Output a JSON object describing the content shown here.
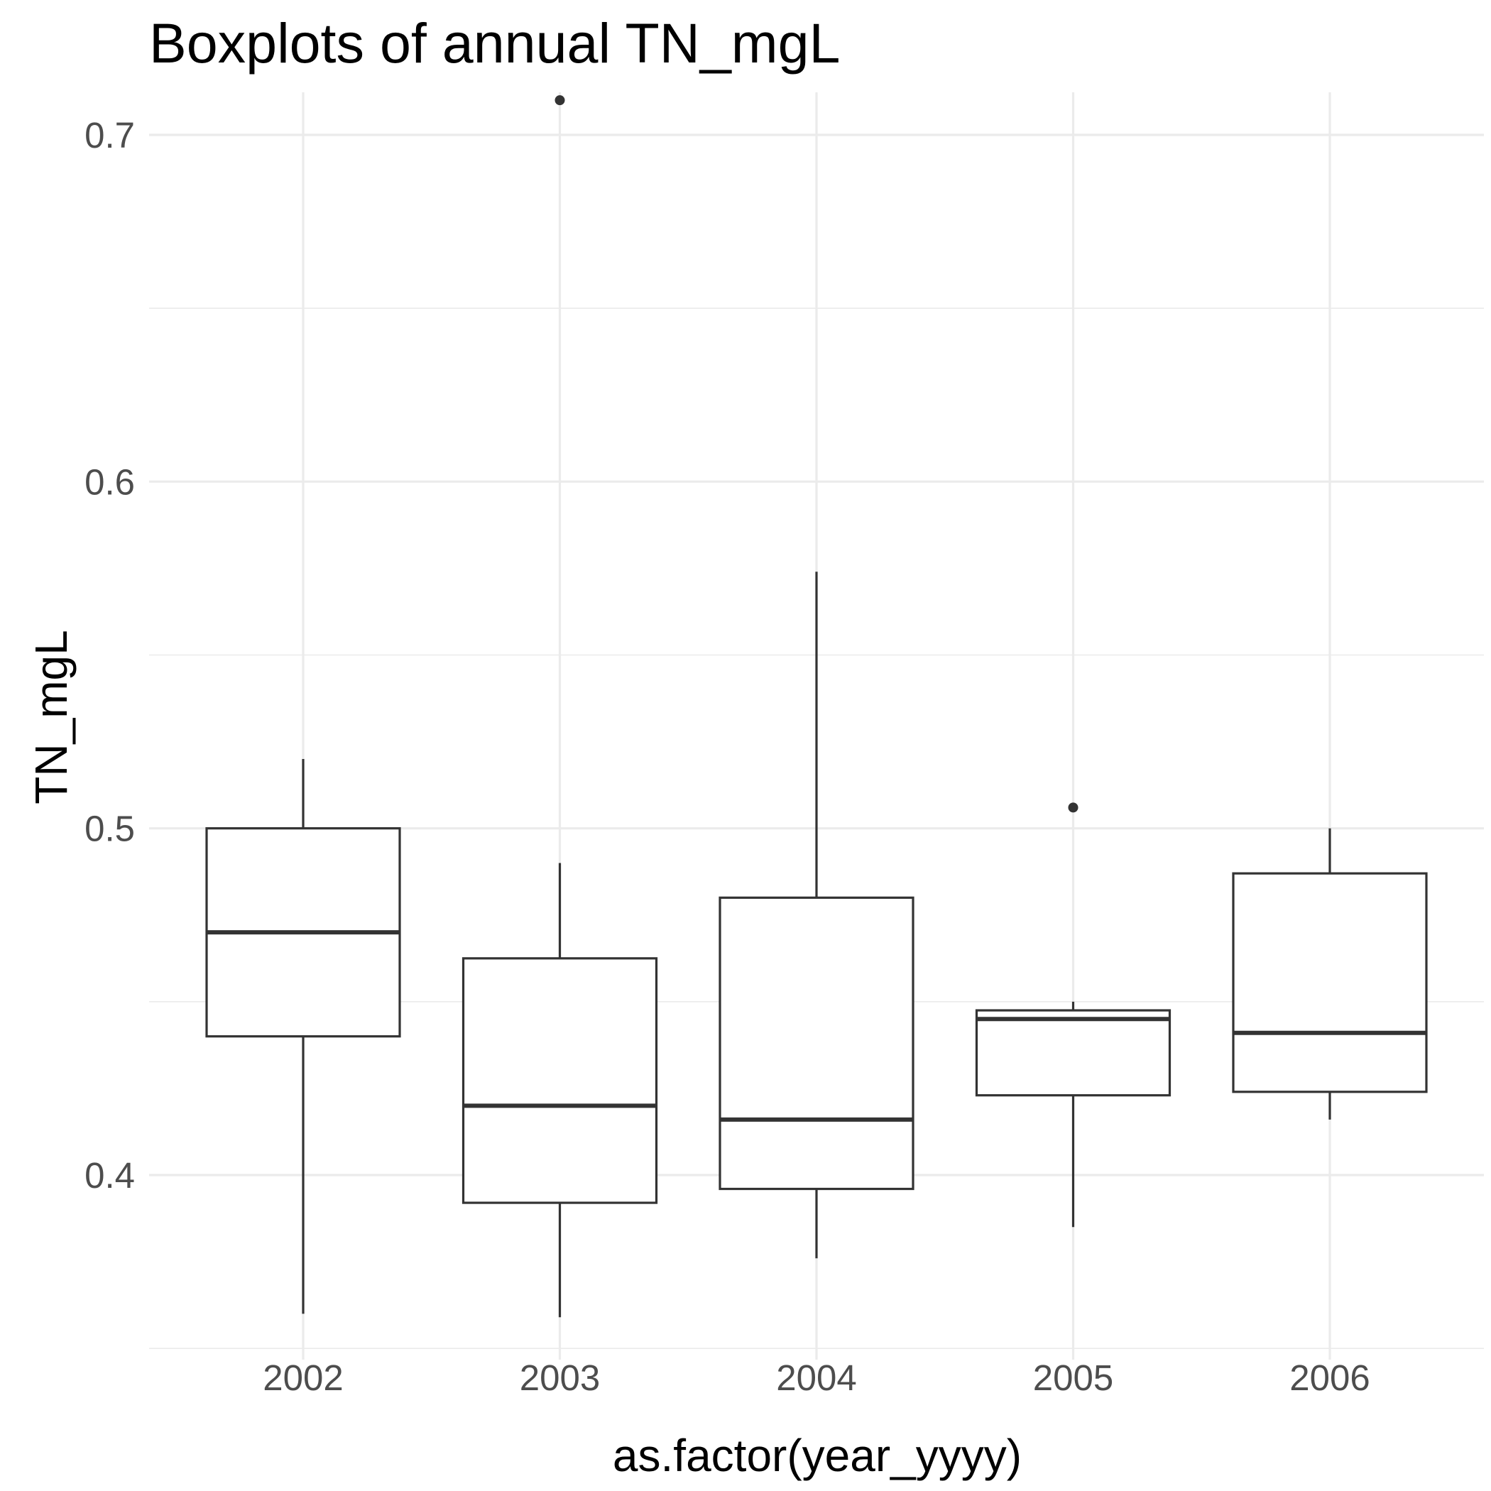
{
  "chart_data": {
    "type": "boxplot",
    "title": "Boxplots of annual TN_mgL",
    "xlabel": "as.factor(year_yyyy)",
    "ylabel": "TN_mgL",
    "categories": [
      "2002",
      "2003",
      "2004",
      "2005",
      "2006"
    ],
    "y_ticks": [
      0.4,
      0.5,
      0.6,
      0.7
    ],
    "y_tick_labels": [
      "0.4",
      "0.5",
      "0.6",
      "0.7"
    ],
    "ylim": [
      0.35,
      0.727
    ],
    "grid": true,
    "boxes": [
      {
        "category": "2002",
        "lower_whisker": 0.36,
        "q1": 0.44,
        "median": 0.47,
        "q3": 0.5,
        "upper_whisker": 0.52,
        "outliers": []
      },
      {
        "category": "2003",
        "lower_whisker": 0.359,
        "q1": 0.392,
        "median": 0.42,
        "q3": 0.4625,
        "upper_whisker": 0.49,
        "outliers": [
          0.71
        ]
      },
      {
        "category": "2004",
        "lower_whisker": 0.376,
        "q1": 0.396,
        "median": 0.416,
        "q3": 0.48,
        "upper_whisker": 0.574,
        "outliers": []
      },
      {
        "category": "2005",
        "lower_whisker": 0.385,
        "q1": 0.423,
        "median": 0.445,
        "q3": 0.4475,
        "upper_whisker": 0.45,
        "outliers": [
          0.506
        ]
      },
      {
        "category": "2006",
        "lower_whisker": 0.416,
        "q1": 0.424,
        "median": 0.441,
        "q3": 0.487,
        "upper_whisker": 0.5,
        "outliers": []
      }
    ]
  }
}
